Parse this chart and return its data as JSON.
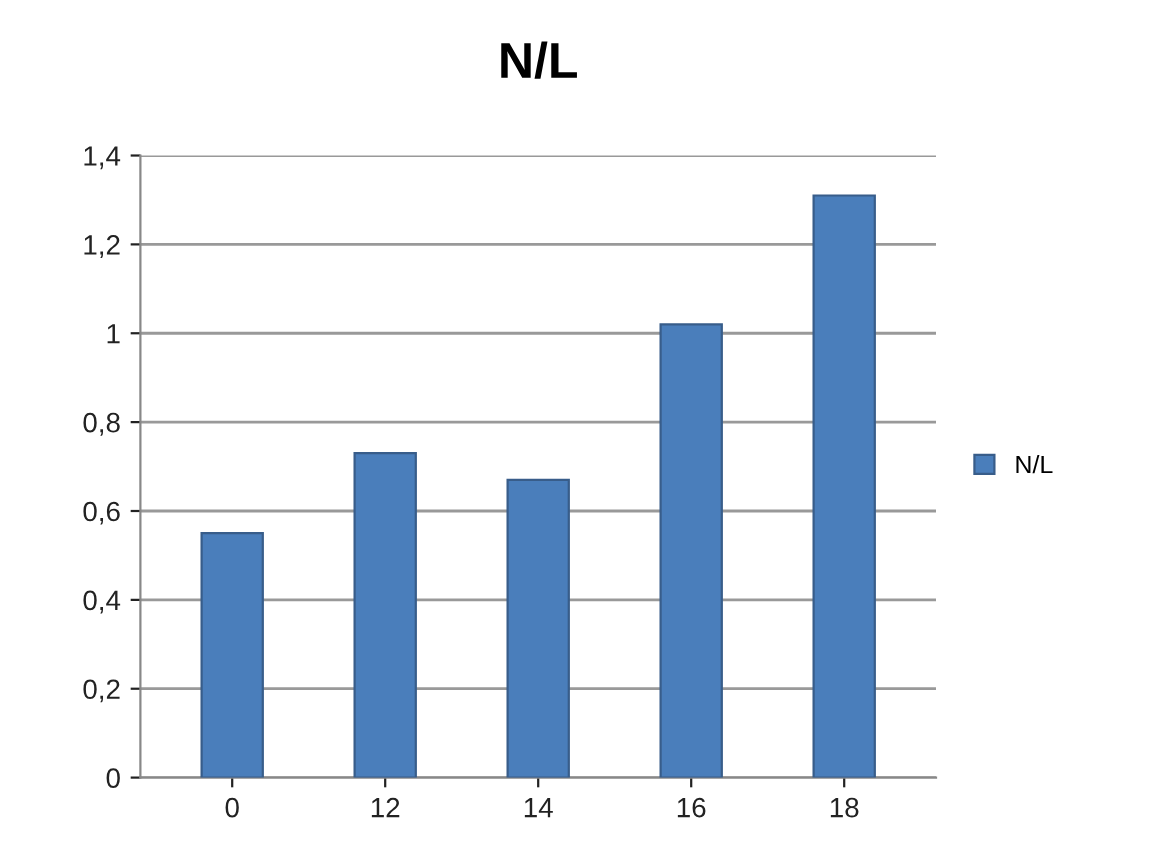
{
  "chart_data": {
    "type": "bar",
    "title": "N/L",
    "categories": [
      "0",
      "12",
      "14",
      "16",
      "18"
    ],
    "series": [
      {
        "name": "N/L",
        "color": "#4a7ebb",
        "values": [
          0.55,
          0.73,
          0.67,
          1.02,
          1.31
        ]
      }
    ],
    "ylim": [
      0,
      1.4
    ],
    "yticks": [
      0,
      {
        "value": 0.2,
        "label": "0,2"
      },
      {
        "value": 0.4,
        "label": "0,4"
      },
      {
        "value": 0.6,
        "label": "0,6"
      },
      {
        "value": 0.8,
        "label": "0,8"
      },
      1,
      {
        "value": 1.2,
        "label": "1,2"
      },
      {
        "value": 1.4,
        "label": "1,4"
      }
    ],
    "grid": "y",
    "legend": "right"
  }
}
